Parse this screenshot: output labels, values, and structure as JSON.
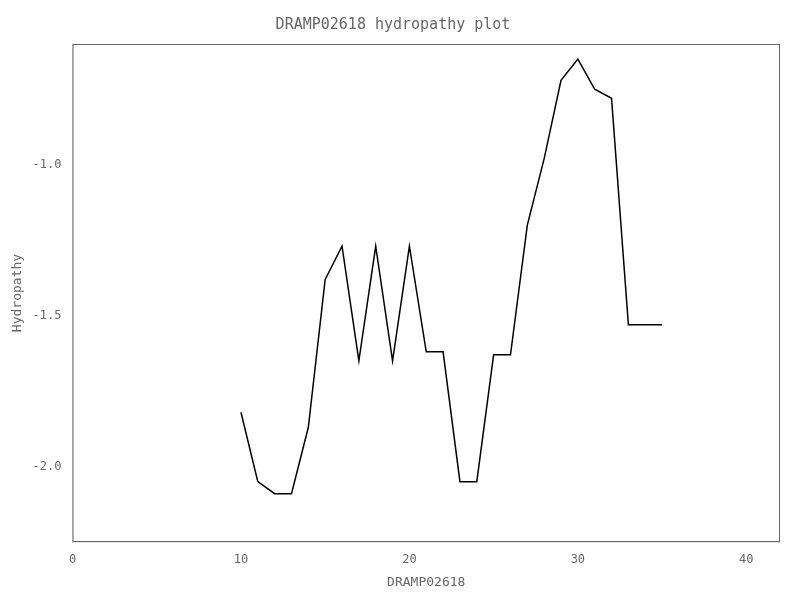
{
  "chart_data": {
    "type": "line",
    "title": "DRAMP02618 hydropathy plot",
    "xlabel": "DRAMP02618",
    "ylabel": "Hydropathy",
    "x": [
      10,
      11,
      12,
      13,
      14,
      15,
      16,
      17,
      18,
      19,
      20,
      21,
      22,
      23,
      24,
      25,
      26,
      27,
      28,
      29,
      30,
      31,
      32,
      33,
      35
    ],
    "values": [
      -1.82,
      -2.05,
      -2.09,
      -2.09,
      -1.87,
      -1.38,
      -1.27,
      -1.65,
      -1.27,
      -1.65,
      -1.27,
      -1.62,
      -1.62,
      -2.05,
      -2.05,
      -1.63,
      -1.63,
      -1.2,
      -0.98,
      -0.72,
      -0.65,
      -0.75,
      -0.78,
      -1.53,
      -1.53
    ],
    "color": "black",
    "xlim": [
      0,
      42
    ],
    "ylim": [
      -2.25,
      -0.6
    ],
    "xticks": [
      0,
      10,
      20,
      30,
      40
    ],
    "yticks": [
      {
        "value": -2.0,
        "label": "-2.0"
      },
      -1.5,
      {
        "value": -1.0,
        "label": "-1.0"
      }
    ],
    "grid": false
  }
}
